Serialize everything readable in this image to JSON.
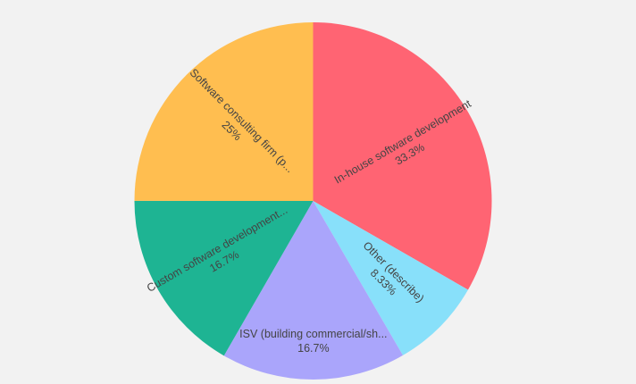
{
  "chart_data": {
    "type": "pie",
    "slices": [
      {
        "label": "In-house software development",
        "display_label": "In-house software development",
        "value": 33.3,
        "percent_label": "33.3%",
        "color": "#ff6473"
      },
      {
        "label": "Other (describe)",
        "display_label": "Other (describe)",
        "value": 8.33,
        "percent_label": "8.33%",
        "color": "#88e0fa"
      },
      {
        "label": "ISV (building commercial/sh...",
        "display_label": "ISV (building commercial/sh...",
        "value": 16.7,
        "percent_label": "16.7%",
        "color": "#aaa5fb"
      },
      {
        "label": "Custom software development...",
        "display_label": "Custom software development...",
        "value": 16.7,
        "percent_label": "16.7%",
        "color": "#1eb493"
      },
      {
        "label": "Software consulting firm (p...",
        "display_label": "Software consulting firm (p...",
        "value": 25,
        "percent_label": "25%",
        "color": "#ffbe50"
      }
    ],
    "start_angle_deg": 0,
    "direction": "clockwise",
    "legend": "none"
  }
}
